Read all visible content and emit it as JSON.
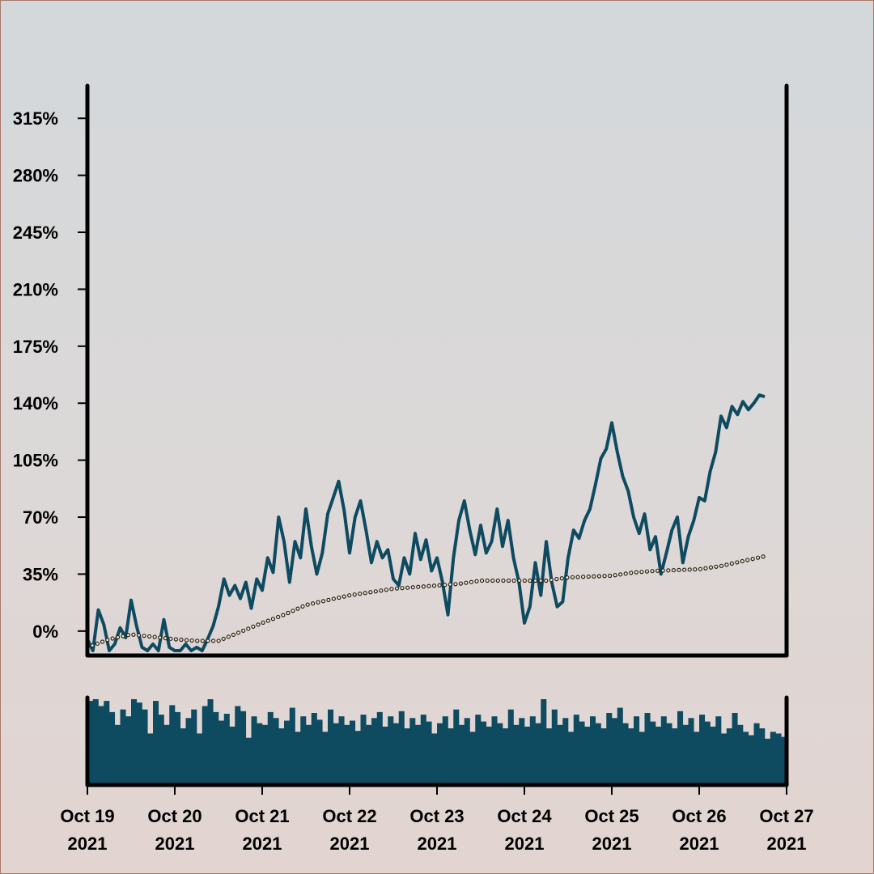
{
  "chart_data": {
    "type": "line",
    "title": "",
    "xlabel": "",
    "ylabel": "",
    "y_unit": "%",
    "y_ticks": [
      "0%",
      "35%",
      "70%",
      "105%",
      "140%",
      "175%",
      "210%",
      "245%",
      "280%",
      "315%"
    ],
    "y_tick_values": [
      0,
      35,
      70,
      105,
      140,
      175,
      210,
      245,
      280,
      315
    ],
    "ylim": [
      -15,
      335
    ],
    "x_ticks": [
      {
        "date": "2021-10-19",
        "line1": "Oct 19",
        "line2": "2021"
      },
      {
        "date": "2021-10-20",
        "line1": "Oct 20",
        "line2": "2021"
      },
      {
        "date": "2021-10-21",
        "line1": "Oct 21",
        "line2": "2021"
      },
      {
        "date": "2021-10-22",
        "line1": "Oct 22",
        "line2": "2021"
      },
      {
        "date": "2021-10-23",
        "line1": "Oct 23",
        "line2": "2021"
      },
      {
        "date": "2021-10-24",
        "line1": "Oct 24",
        "line2": "2021"
      },
      {
        "date": "2021-10-25",
        "line1": "Oct 25",
        "line2": "2021"
      },
      {
        "date": "2021-10-26",
        "line1": "Oct 26",
        "line2": "2021"
      },
      {
        "date": "2021-10-27",
        "line1": "Oct 27",
        "line2": "2021"
      }
    ],
    "xlim": [
      "2021-10-19",
      "2021-10-27"
    ],
    "grid": false,
    "legend": "none",
    "series": [
      {
        "style": "line",
        "color": "#0e4a60",
        "points": [
          [
            "2021-10-19 00:00",
            -5
          ],
          [
            "2021-10-19 01:30",
            -12
          ],
          [
            "2021-10-19 03:00",
            13
          ],
          [
            "2021-10-19 04:30",
            4
          ],
          [
            "2021-10-19 06:00",
            -12
          ],
          [
            "2021-10-19 07:30",
            -8
          ],
          [
            "2021-10-19 09:00",
            2
          ],
          [
            "2021-10-19 10:30",
            -4
          ],
          [
            "2021-10-19 12:00",
            19
          ],
          [
            "2021-10-19 13:30",
            3
          ],
          [
            "2021-10-19 15:00",
            -10
          ],
          [
            "2021-10-19 16:30",
            -12
          ],
          [
            "2021-10-19 18:00",
            -8
          ],
          [
            "2021-10-19 19:30",
            -12
          ],
          [
            "2021-10-19 21:00",
            7
          ],
          [
            "2021-10-19 22:30",
            -10
          ],
          [
            "2021-10-20 00:00",
            -12
          ],
          [
            "2021-10-20 01:30",
            -12
          ],
          [
            "2021-10-20 03:00",
            -8
          ],
          [
            "2021-10-20 04:30",
            -12
          ],
          [
            "2021-10-20 06:00",
            -10
          ],
          [
            "2021-10-20 07:30",
            -12
          ],
          [
            "2021-10-20 09:00",
            -5
          ],
          [
            "2021-10-20 10:30",
            3
          ],
          [
            "2021-10-20 12:00",
            15
          ],
          [
            "2021-10-20 13:30",
            32
          ],
          [
            "2021-10-20 15:00",
            22
          ],
          [
            "2021-10-20 16:30",
            28
          ],
          [
            "2021-10-20 18:00",
            20
          ],
          [
            "2021-10-20 19:30",
            30
          ],
          [
            "2021-10-20 21:00",
            14
          ],
          [
            "2021-10-20 22:30",
            32
          ],
          [
            "2021-10-21 00:00",
            25
          ],
          [
            "2021-10-21 01:30",
            45
          ],
          [
            "2021-10-21 03:00",
            36
          ],
          [
            "2021-10-21 04:30",
            70
          ],
          [
            "2021-10-21 06:00",
            55
          ],
          [
            "2021-10-21 07:30",
            30
          ],
          [
            "2021-10-21 09:00",
            55
          ],
          [
            "2021-10-21 10:30",
            45
          ],
          [
            "2021-10-21 12:00",
            75
          ],
          [
            "2021-10-21 13:30",
            52
          ],
          [
            "2021-10-21 15:00",
            35
          ],
          [
            "2021-10-21 16:30",
            48
          ],
          [
            "2021-10-21 18:00",
            72
          ],
          [
            "2021-10-21 19:30",
            82
          ],
          [
            "2021-10-21 21:00",
            92
          ],
          [
            "2021-10-21 22:30",
            74
          ],
          [
            "2021-10-22 00:00",
            48
          ],
          [
            "2021-10-22 01:30",
            70
          ],
          [
            "2021-10-22 03:00",
            80
          ],
          [
            "2021-10-22 04:30",
            62
          ],
          [
            "2021-10-22 06:00",
            42
          ],
          [
            "2021-10-22 07:30",
            55
          ],
          [
            "2021-10-22 09:00",
            45
          ],
          [
            "2021-10-22 10:30",
            50
          ],
          [
            "2021-10-22 12:00",
            32
          ],
          [
            "2021-10-22 13:30",
            28
          ],
          [
            "2021-10-22 15:00",
            45
          ],
          [
            "2021-10-22 16:30",
            35
          ],
          [
            "2021-10-22 18:00",
            60
          ],
          [
            "2021-10-22 19:30",
            44
          ],
          [
            "2021-10-22 21:00",
            56
          ],
          [
            "2021-10-22 22:30",
            37
          ],
          [
            "2021-10-23 00:00",
            45
          ],
          [
            "2021-10-23 01:30",
            30
          ],
          [
            "2021-10-23 03:00",
            10
          ],
          [
            "2021-10-23 04:30",
            45
          ],
          [
            "2021-10-23 06:00",
            68
          ],
          [
            "2021-10-23 07:30",
            80
          ],
          [
            "2021-10-23 09:00",
            62
          ],
          [
            "2021-10-23 10:30",
            47
          ],
          [
            "2021-10-23 12:00",
            65
          ],
          [
            "2021-10-23 13:30",
            48
          ],
          [
            "2021-10-23 15:00",
            55
          ],
          [
            "2021-10-23 16:30",
            75
          ],
          [
            "2021-10-23 18:00",
            52
          ],
          [
            "2021-10-23 19:30",
            68
          ],
          [
            "2021-10-23 21:00",
            45
          ],
          [
            "2021-10-23 22:30",
            30
          ],
          [
            "2021-10-24 00:00",
            5
          ],
          [
            "2021-10-24 01:30",
            15
          ],
          [
            "2021-10-24 03:00",
            42
          ],
          [
            "2021-10-24 04:30",
            22
          ],
          [
            "2021-10-24 06:00",
            55
          ],
          [
            "2021-10-24 07:30",
            30
          ],
          [
            "2021-10-24 09:00",
            15
          ],
          [
            "2021-10-24 10:30",
            18
          ],
          [
            "2021-10-24 12:00",
            45
          ],
          [
            "2021-10-24 13:30",
            62
          ],
          [
            "2021-10-24 15:00",
            57
          ],
          [
            "2021-10-24 16:30",
            68
          ],
          [
            "2021-10-24 18:00",
            75
          ],
          [
            "2021-10-24 19:30",
            90
          ],
          [
            "2021-10-24 21:00",
            106
          ],
          [
            "2021-10-24 22:30",
            112
          ],
          [
            "2021-10-25 00:00",
            128
          ],
          [
            "2021-10-25 01:30",
            110
          ],
          [
            "2021-10-25 03:00",
            95
          ],
          [
            "2021-10-25 04:30",
            86
          ],
          [
            "2021-10-25 06:00",
            70
          ],
          [
            "2021-10-25 07:30",
            60
          ],
          [
            "2021-10-25 09:00",
            72
          ],
          [
            "2021-10-25 10:30",
            50
          ],
          [
            "2021-10-25 12:00",
            58
          ],
          [
            "2021-10-25 13:30",
            35
          ],
          [
            "2021-10-25 15:00",
            48
          ],
          [
            "2021-10-25 16:30",
            62
          ],
          [
            "2021-10-25 18:00",
            70
          ],
          [
            "2021-10-25 19:30",
            42
          ],
          [
            "2021-10-25 21:00",
            58
          ],
          [
            "2021-10-25 22:30",
            68
          ],
          [
            "2021-10-26 00:00",
            82
          ],
          [
            "2021-10-26 01:30",
            80
          ],
          [
            "2021-10-26 03:00",
            98
          ],
          [
            "2021-10-26 04:30",
            110
          ],
          [
            "2021-10-26 06:00",
            132
          ],
          [
            "2021-10-26 07:30",
            125
          ],
          [
            "2021-10-26 09:00",
            138
          ],
          [
            "2021-10-26 10:30",
            133
          ],
          [
            "2021-10-26 12:00",
            141
          ],
          [
            "2021-10-26 13:30",
            136
          ],
          [
            "2021-10-26 15:00",
            140
          ],
          [
            "2021-10-26 16:30",
            145
          ],
          [
            "2021-10-26 18:00",
            144
          ]
        ]
      },
      {
        "style": "dotted",
        "color": "#f2e2bd",
        "points": [
          [
            "2021-10-19 00:00",
            -10
          ],
          [
            "2021-10-19 06:00",
            -5
          ],
          [
            "2021-10-19 12:00",
            -2
          ],
          [
            "2021-10-20 00:00",
            -5
          ],
          [
            "2021-10-20 06:00",
            -6
          ],
          [
            "2021-10-20 12:00",
            -6
          ],
          [
            "2021-10-21 00:00",
            5
          ],
          [
            "2021-10-21 06:00",
            10
          ],
          [
            "2021-10-21 12:00",
            16
          ],
          [
            "2021-10-22 00:00",
            22
          ],
          [
            "2021-10-22 06:00",
            24
          ],
          [
            "2021-10-22 12:00",
            26
          ],
          [
            "2021-10-23 00:00",
            28
          ],
          [
            "2021-10-23 06:00",
            29
          ],
          [
            "2021-10-23 12:00",
            31
          ],
          [
            "2021-10-24 00:00",
            31
          ],
          [
            "2021-10-24 06:00",
            31
          ],
          [
            "2021-10-24 12:00",
            33
          ],
          [
            "2021-10-25 00:00",
            34
          ],
          [
            "2021-10-25 06:00",
            36
          ],
          [
            "2021-10-25 12:00",
            37
          ],
          [
            "2021-10-26 00:00",
            38
          ],
          [
            "2021-10-26 06:00",
            40
          ],
          [
            "2021-10-26 12:00",
            43
          ],
          [
            "2021-10-26 18:00",
            46
          ]
        ]
      }
    ],
    "volume": {
      "type": "bar",
      "color": "#0e4a60",
      "values": [
        98,
        100,
        92,
        98,
        85,
        70,
        88,
        80,
        100,
        96,
        88,
        60,
        98,
        82,
        70,
        93,
        85,
        66,
        78,
        88,
        60,
        92,
        100,
        85,
        75,
        83,
        68,
        92,
        86,
        55,
        80,
        72,
        70,
        85,
        78,
        66,
        75,
        90,
        62,
        80,
        70,
        84,
        76,
        62,
        88,
        72,
        80,
        70,
        75,
        63,
        82,
        70,
        78,
        85,
        68,
        80,
        72,
        86,
        66,
        78,
        70,
        82,
        74,
        60,
        72,
        80,
        66,
        88,
        70,
        78,
        62,
        82,
        74,
        68,
        80,
        72,
        66,
        88,
        70,
        78,
        68,
        80,
        72,
        100,
        66,
        88,
        70,
        78,
        62,
        82,
        74,
        68,
        80,
        72,
        66,
        84,
        78,
        90,
        72,
        66,
        80,
        62,
        84,
        74,
        68,
        80,
        72,
        66,
        86,
        70,
        78,
        62,
        82,
        74,
        68,
        80,
        60,
        66,
        84,
        70,
        62,
        58,
        72,
        66,
        54,
        62,
        60,
        56
      ]
    }
  }
}
